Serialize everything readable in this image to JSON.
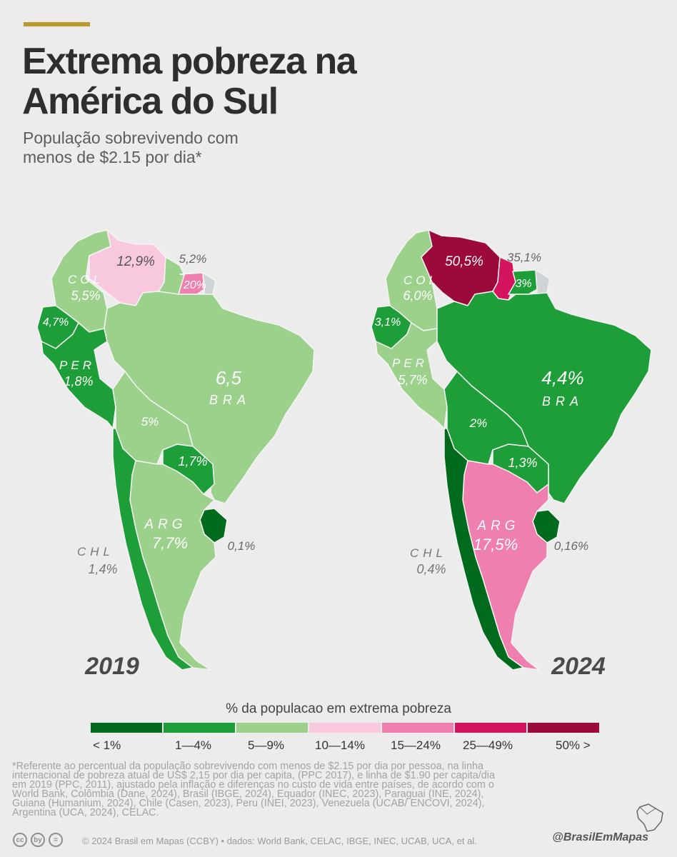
{
  "title_lines": [
    "Extrema pobreza na",
    "América do Sul"
  ],
  "subtitle_lines": [
    "População sobrevivendo com",
    "menos de $2.15 por dia*"
  ],
  "colors": {
    "lt1": "#006b1c",
    "c1_4": "#1e9e38",
    "c5_9": "#9bd18a",
    "c10_14": "#f8c9de",
    "c15_24": "#ef7fae",
    "c25_49": "#d4145c",
    "c50": "#9c0a3b",
    "nodata": "#cfd4d6",
    "border": "#f4f4f4"
  },
  "maps": [
    {
      "year": "2019",
      "countries": {
        "venezuela": {
          "color": "c10_14",
          "value": "12,9%"
        },
        "colombia": {
          "color": "c5_9",
          "code": "COL",
          "value": "5,5%"
        },
        "ecuador": {
          "color": "c1_4",
          "value": "4,7%"
        },
        "peru": {
          "color": "c1_4",
          "code": "PER",
          "value": "1,8%"
        },
        "bolivia": {
          "color": "c5_9",
          "value": "5%"
        },
        "brazil": {
          "color": "c5_9",
          "code": "BRA",
          "value": "6,5"
        },
        "paraguay": {
          "color": "c1_4",
          "value": "1,7%"
        },
        "uruguay": {
          "color": "lt1",
          "value": "0,1%"
        },
        "argentina": {
          "color": "c5_9",
          "code": "ARG",
          "value": "7,7%"
        },
        "chile": {
          "color": "c1_4",
          "code": "CHL",
          "value": "1,4%"
        },
        "guyana": {
          "color": "c5_9",
          "value": "5,2%"
        },
        "suriname": {
          "color": "c15_24",
          "value": "20%"
        },
        "fguiana": {
          "color": "nodata"
        }
      }
    },
    {
      "year": "2024",
      "countries": {
        "venezuela": {
          "color": "c50",
          "value": "50,5%"
        },
        "colombia": {
          "color": "c5_9",
          "code": "COL",
          "value": "6,0%"
        },
        "ecuador": {
          "color": "c1_4",
          "value": "3,1%"
        },
        "peru": {
          "color": "c5_9",
          "code": "PER",
          "value": "5,7%"
        },
        "bolivia": {
          "color": "c1_4",
          "value": "2%"
        },
        "brazil": {
          "color": "c1_4",
          "code": "BRA",
          "value": "4,4%"
        },
        "paraguay": {
          "color": "c1_4",
          "value": "1,3%"
        },
        "uruguay": {
          "color": "lt1",
          "value": "0,16%"
        },
        "argentina": {
          "color": "c15_24",
          "code": "ARG",
          "value": "17,5%"
        },
        "chile": {
          "color": "lt1",
          "code": "CHL",
          "value": "0,4%"
        },
        "guyana": {
          "color": "c25_49",
          "value": "35,1%"
        },
        "suriname": {
          "color": "c1_4",
          "value": "3%"
        },
        "fguiana": {
          "color": "nodata"
        }
      }
    }
  ],
  "legend": {
    "title": "% da populacao em extrema pobreza",
    "colors": [
      "#006b1c",
      "#1e9e38",
      "#9bd18a",
      "#f8c9de",
      "#ef7fae",
      "#d4145c",
      "#9c0a3b"
    ],
    "labels": [
      "< 1%",
      "1—4%",
      "5—9%",
      "10—14%",
      "15—24%",
      "25—49%",
      "50% >"
    ]
  },
  "footnote_lines": [
    "*Referente ao percentual da população sobrevivendo com menos de $2.15 por dia por pessoa, na linha",
    "internacional de pobreza atual de US$ 2,15 por dia per capita, (PPC 2017), e linha de $1.90 per capita/dia",
    "em 2019 (PPC, 2011), ajustado pela inflação e diferenças no custo de vida entre países, de acordo com o",
    "World Bank, Colômbia (Dane, 2024), Brasil (IBGE, 2024), Equador (INEC, 2023), Paraguai (INE, 2024),",
    "Guiana (Humanium, 2024), Chile (Casen, 2023), Peru (INEI, 2023), Venezuela (UCAB/ ENCOVI, 2024),",
    "Argentina (UCA, 2024), CELAC."
  ],
  "credits": "© 2024 Brasil em Mapas (CCBY) • dados: World Bank, CELAC, IBGE, INEC, UCAB, UCA, et al.",
  "cc_icons": [
    "cc",
    "by",
    "="
  ],
  "handle": "@BrasilEmMapas"
}
